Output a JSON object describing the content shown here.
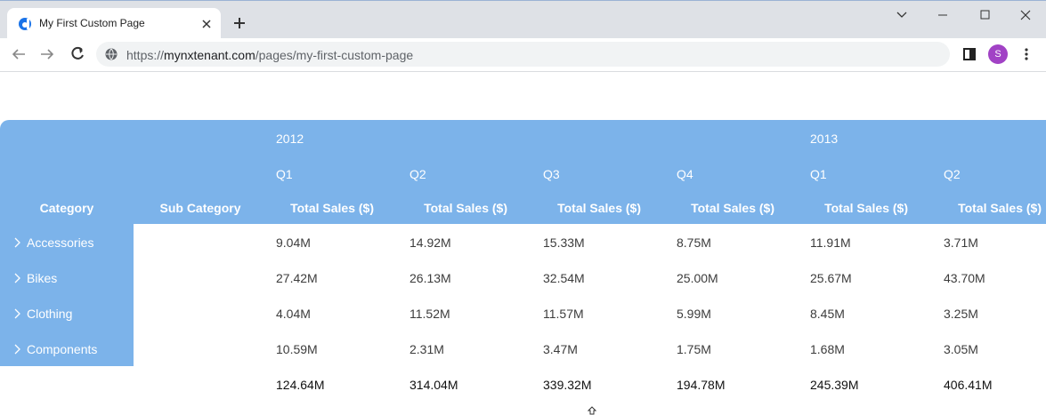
{
  "browser": {
    "tab_title": "My First Custom Page",
    "url": {
      "scheme": "https://",
      "host": "mynxtenant.com",
      "path": "/pages/my-first-custom-page"
    },
    "profile_initial": "S"
  },
  "table": {
    "years": [
      {
        "label": "2012",
        "quarters": [
          "Q1",
          "Q2",
          "Q3",
          "Q4"
        ]
      },
      {
        "label": "2013",
        "quarters": [
          "Q1",
          "Q2"
        ]
      }
    ],
    "row_header": "Category",
    "sub_header": "Sub Category",
    "measure": "Total Sales ($)",
    "rows": [
      {
        "category": "Accessories",
        "values": [
          "9.04M",
          "14.92M",
          "15.33M",
          "8.75M",
          "11.91M",
          "3.71M"
        ]
      },
      {
        "category": "Bikes",
        "values": [
          "27.42M",
          "26.13M",
          "32.54M",
          "25.00M",
          "25.67M",
          "43.70M"
        ]
      },
      {
        "category": "Clothing",
        "values": [
          "4.04M",
          "11.52M",
          "11.57M",
          "5.99M",
          "8.45M",
          "3.25M"
        ]
      },
      {
        "category": "Components",
        "values": [
          "10.59M",
          "2.31M",
          "3.47M",
          "1.75M",
          "1.68M",
          "3.05M"
        ]
      }
    ],
    "totals": [
      "124.64M",
      "314.04M",
      "339.32M",
      "194.78M",
      "245.39M",
      "406.41M"
    ]
  }
}
